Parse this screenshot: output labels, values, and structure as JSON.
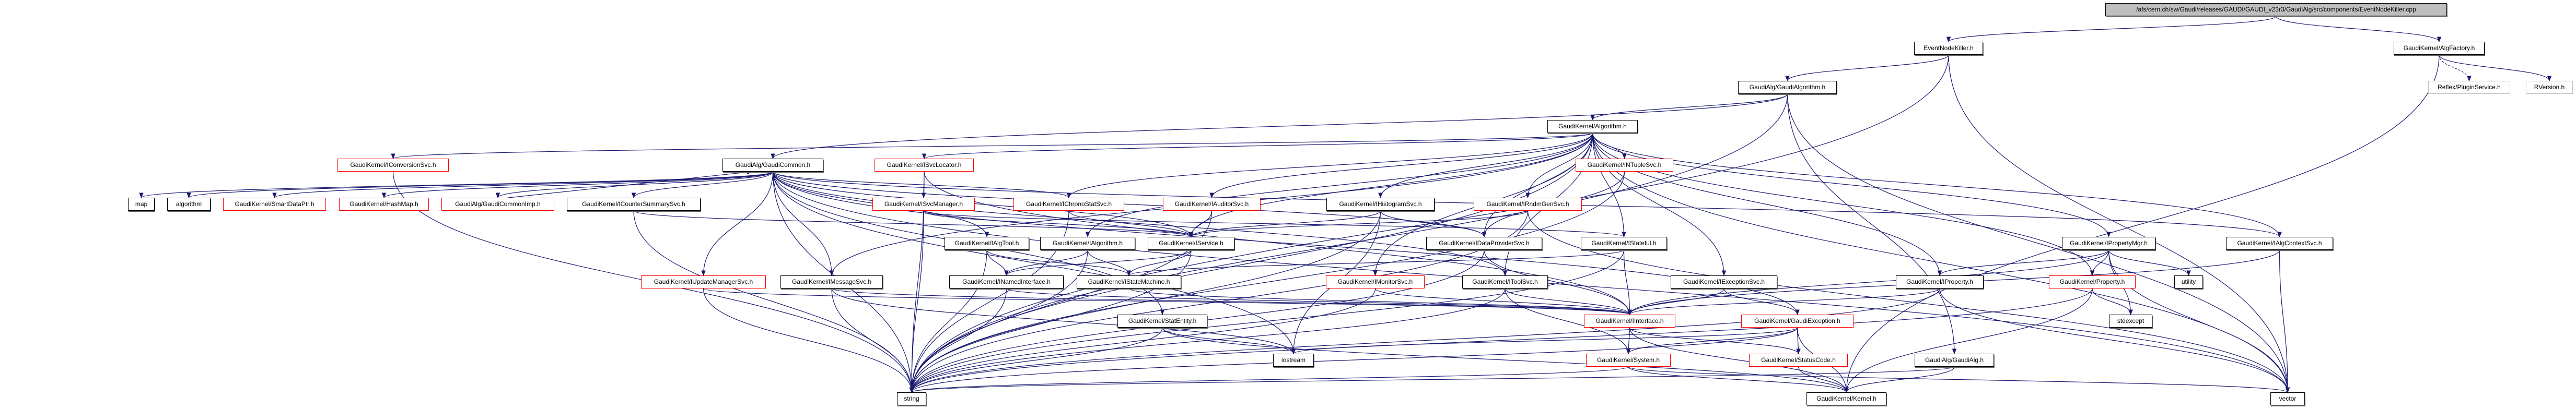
{
  "colors": {
    "edge": "#191970",
    "normal_border": "#000000",
    "link_border": "#ff0000",
    "external_border": "#bfbfbf",
    "root_fill": "#bfbfbf"
  },
  "nodes": [
    {
      "id": "root",
      "label": "/afs/cern.ch/sw/Gaudi/releases/GAUDI/GAUDI_v23r3/GaudiAlg/src/components/EventNodeKiller.cpp",
      "style": "root"
    },
    {
      "id": "enk",
      "label": "EventNodeKiller.h",
      "style": "black"
    },
    {
      "id": "algfac",
      "label": "GaudiKernel/AlgFactory.h",
      "style": "black"
    },
    {
      "id": "plugin",
      "label": "Reflex/PluginService.h",
      "style": "gray"
    },
    {
      "id": "rversion",
      "label": "RVersion.h",
      "style": "gray"
    },
    {
      "id": "gaudialgorithm",
      "label": "GaudiAlg/GaudiAlgorithm.h",
      "style": "black"
    },
    {
      "id": "algorithm",
      "label": "GaudiKernel/Algorithm.h",
      "style": "black"
    },
    {
      "id": "iconv",
      "label": "GaudiKernel/IConversionSvc.h",
      "style": "red"
    },
    {
      "id": "gaudicommon",
      "label": "GaudiAlg/GaudiCommon.h",
      "style": "black"
    },
    {
      "id": "isvcloc",
      "label": "GaudiKernel/ISvcLocator.h",
      "style": "red"
    },
    {
      "id": "intuple",
      "label": "GaudiKernel/INTupleSvc.h",
      "style": "red"
    },
    {
      "id": "map",
      "label": "map",
      "style": "black"
    },
    {
      "id": "algostd",
      "label": "algorithm",
      "style": "black"
    },
    {
      "id": "smartdata",
      "label": "GaudiKernel/SmartDataPtr.h",
      "style": "red"
    },
    {
      "id": "hashmap",
      "label": "GaudiKernel/HashMap.h",
      "style": "red"
    },
    {
      "id": "gcimp",
      "label": "GaudiAlg/GaudiCommonImp.h",
      "style": "red"
    },
    {
      "id": "icounter",
      "label": "GaudiKernel/ICounterSummarySvc.h",
      "style": "black"
    },
    {
      "id": "isvcmgr",
      "label": "GaudiKernel/ISvcManager.h",
      "style": "red"
    },
    {
      "id": "ichrono",
      "label": "GaudiKernel/IChronoStatSvc.h",
      "style": "red"
    },
    {
      "id": "iauditor",
      "label": "GaudiKernel/IAuditorSvc.h",
      "style": "red"
    },
    {
      "id": "ihisto",
      "label": "GaudiKernel/IHistogramSvc.h",
      "style": "black"
    },
    {
      "id": "irndm",
      "label": "GaudiKernel/IRndmGenSvc.h",
      "style": "red"
    },
    {
      "id": "ialgtool",
      "label": "GaudiKernel/IAlgTool.h",
      "style": "black"
    },
    {
      "id": "ialgorithm",
      "label": "GaudiKernel/IAlgorithm.h",
      "style": "black"
    },
    {
      "id": "iservice",
      "label": "GaudiKernel/IService.h",
      "style": "black"
    },
    {
      "id": "idataprov",
      "label": "GaudiKernel/IDataProviderSvc.h",
      "style": "black"
    },
    {
      "id": "istateful",
      "label": "GaudiKernel/IStateful.h",
      "style": "black"
    },
    {
      "id": "ipropmgr",
      "label": "GaudiKernel/IPropertyMgr.h",
      "style": "black"
    },
    {
      "id": "ialgctx",
      "label": "GaudiKernel/IAlgContextSvc.h",
      "style": "black"
    },
    {
      "id": "iupdmgr",
      "label": "GaudiKernel/IUpdateManagerSvc.h",
      "style": "red"
    },
    {
      "id": "imsg",
      "label": "GaudiKernel/IMessageSvc.h",
      "style": "black"
    },
    {
      "id": "inamed",
      "label": "GaudiKernel/INamedInterface.h",
      "style": "black"
    },
    {
      "id": "istatemach",
      "label": "GaudiKernel/IStateMachine.h",
      "style": "black"
    },
    {
      "id": "imonitor",
      "label": "GaudiKernel/IMonitorSvc.h",
      "style": "red"
    },
    {
      "id": "itoolsvc",
      "label": "GaudiKernel/IToolSvc.h",
      "style": "black"
    },
    {
      "id": "iexcept",
      "label": "GaudiKernel/IExceptionSvc.h",
      "style": "black"
    },
    {
      "id": "iproperty",
      "label": "GaudiKernel/IProperty.h",
      "style": "black"
    },
    {
      "id": "property",
      "label": "GaudiKernel/Property.h",
      "style": "red"
    },
    {
      "id": "utility",
      "label": "utility",
      "style": "black"
    },
    {
      "id": "statentity",
      "label": "GaudiKernel/StatEntity.h",
      "style": "black"
    },
    {
      "id": "iinterface",
      "label": "GaudiKernel/IInterface.h",
      "style": "red"
    },
    {
      "id": "gexception",
      "label": "GaudiKernel/GaudiException.h",
      "style": "red"
    },
    {
      "id": "stdexcept",
      "label": "stdexcept",
      "style": "black"
    },
    {
      "id": "iostream",
      "label": "iostream",
      "style": "black"
    },
    {
      "id": "system",
      "label": "GaudiKernel/System.h",
      "style": "red"
    },
    {
      "id": "statuscode",
      "label": "GaudiKernel/StatusCode.h",
      "style": "red"
    },
    {
      "id": "gaudialg",
      "label": "GaudiAlg/GaudiAlg.h",
      "style": "black"
    },
    {
      "id": "string",
      "label": "string",
      "style": "black"
    },
    {
      "id": "kernel",
      "label": "GaudiKernel/Kernel.h",
      "style": "black"
    },
    {
      "id": "vector",
      "label": "vector",
      "style": "black"
    }
  ],
  "edges": [
    [
      "root",
      "enk"
    ],
    [
      "root",
      "algfac"
    ],
    [
      "algfac",
      "plugin"
    ],
    [
      "algfac",
      "rversion"
    ],
    [
      "algfac",
      "kernel"
    ],
    [
      "enk",
      "gaudialgorithm"
    ],
    [
      "enk",
      "string"
    ],
    [
      "enk",
      "vector"
    ],
    [
      "gaudialgorithm",
      "algorithm"
    ],
    [
      "gaudialgorithm",
      "gaudicommon"
    ],
    [
      "gaudialgorithm",
      "gaudialg"
    ],
    [
      "gaudialgorithm",
      "string"
    ],
    [
      "gaudialgorithm",
      "vector"
    ],
    [
      "algorithm",
      "iconv"
    ],
    [
      "algorithm",
      "isvcloc"
    ],
    [
      "algorithm",
      "intuple"
    ],
    [
      "algorithm",
      "ialgorithm"
    ],
    [
      "algorithm",
      "iservice"
    ],
    [
      "algorithm",
      "iproperty"
    ],
    [
      "algorithm",
      "ipropmgr"
    ],
    [
      "algorithm",
      "ichrono"
    ],
    [
      "algorithm",
      "iauditor"
    ],
    [
      "algorithm",
      "ihisto"
    ],
    [
      "algorithm",
      "irndm"
    ],
    [
      "algorithm",
      "idataprov"
    ],
    [
      "algorithm",
      "istateful"
    ],
    [
      "algorithm",
      "imsg"
    ],
    [
      "algorithm",
      "imonitor"
    ],
    [
      "algorithm",
      "itoolsvc"
    ],
    [
      "algorithm",
      "iexcept"
    ],
    [
      "algorithm",
      "ialgctx"
    ],
    [
      "algorithm",
      "property"
    ],
    [
      "algorithm",
      "string"
    ],
    [
      "algorithm",
      "vector"
    ],
    [
      "gaudicommon",
      "map"
    ],
    [
      "gaudicommon",
      "algostd"
    ],
    [
      "gaudicommon",
      "smartdata"
    ],
    [
      "gaudicommon",
      "hashmap"
    ],
    [
      "gaudicommon",
      "gcimp"
    ],
    [
      "gaudicommon",
      "icounter"
    ],
    [
      "gaudicommon",
      "ichrono"
    ],
    [
      "gaudicommon",
      "ialgtool"
    ],
    [
      "gaudicommon",
      "iservice"
    ],
    [
      "gaudicommon",
      "iupdmgr"
    ],
    [
      "gaudicommon",
      "imsg"
    ],
    [
      "gaudicommon",
      "statentity"
    ],
    [
      "gaudicommon",
      "itoolsvc"
    ],
    [
      "gaudicommon",
      "ialgctx"
    ],
    [
      "gaudicommon",
      "idataprov"
    ],
    [
      "gaudicommon",
      "gexception"
    ],
    [
      "gaudicommon",
      "iostream"
    ],
    [
      "gaudicommon",
      "string"
    ],
    [
      "gaudicommon",
      "vector"
    ],
    [
      "gcimp",
      "gaudicommon"
    ],
    [
      "iconv",
      "string"
    ],
    [
      "icounter",
      "iservice"
    ],
    [
      "icounter",
      "string"
    ],
    [
      "isvcloc",
      "isvcmgr"
    ],
    [
      "isvcloc",
      "iinterface"
    ],
    [
      "isvcloc",
      "string"
    ],
    [
      "isvcmgr",
      "iservice"
    ],
    [
      "isvcmgr",
      "istateful"
    ],
    [
      "isvcmgr",
      "string"
    ],
    [
      "ichrono",
      "iservice"
    ],
    [
      "ichrono",
      "string"
    ],
    [
      "iauditor",
      "iservice"
    ],
    [
      "iauditor",
      "string"
    ],
    [
      "ihisto",
      "iservice"
    ],
    [
      "ihisto",
      "idataprov"
    ],
    [
      "ihisto",
      "iostream"
    ],
    [
      "ihisto",
      "string"
    ],
    [
      "irndm",
      "iservice"
    ],
    [
      "irndm",
      "string"
    ],
    [
      "irndm",
      "vector"
    ],
    [
      "intuple",
      "idataprov"
    ],
    [
      "intuple",
      "string"
    ],
    [
      "ialgtool",
      "inamed"
    ],
    [
      "ialgtool",
      "istatemach"
    ],
    [
      "ialgtool",
      "string"
    ],
    [
      "ialgorithm",
      "inamed"
    ],
    [
      "ialgorithm",
      "istatemach"
    ],
    [
      "ialgorithm",
      "string"
    ],
    [
      "iservice",
      "inamed"
    ],
    [
      "iservice",
      "istatemach"
    ],
    [
      "iservice",
      "string"
    ],
    [
      "idataprov",
      "iinterface"
    ],
    [
      "idataprov",
      "string"
    ],
    [
      "istateful",
      "istatemach"
    ],
    [
      "istateful",
      "iinterface"
    ],
    [
      "istateful",
      "string"
    ],
    [
      "ipropmgr",
      "iproperty"
    ],
    [
      "ipropmgr",
      "property"
    ],
    [
      "ipropmgr",
      "iinterface"
    ],
    [
      "ipropmgr",
      "utility"
    ],
    [
      "ipropmgr",
      "stdexcept"
    ],
    [
      "ipropmgr",
      "vector"
    ],
    [
      "ialgctx",
      "iinterface"
    ],
    [
      "ialgctx",
      "vector"
    ],
    [
      "iupdmgr",
      "iinterface"
    ],
    [
      "iupdmgr",
      "string"
    ],
    [
      "imsg",
      "iinterface"
    ],
    [
      "imsg",
      "iostream"
    ],
    [
      "imsg",
      "string"
    ],
    [
      "inamed",
      "iinterface"
    ],
    [
      "inamed",
      "string"
    ],
    [
      "istatemach",
      "iinterface"
    ],
    [
      "imonitor",
      "iinterface"
    ],
    [
      "imonitor",
      "string"
    ],
    [
      "itoolsvc",
      "iinterface"
    ],
    [
      "itoolsvc",
      "system"
    ],
    [
      "itoolsvc",
      "string"
    ],
    [
      "iexcept",
      "iinterface"
    ],
    [
      "iexcept",
      "gexception"
    ],
    [
      "iproperty",
      "iinterface"
    ],
    [
      "iproperty",
      "string"
    ],
    [
      "iproperty",
      "vector"
    ],
    [
      "property",
      "stdexcept"
    ],
    [
      "property",
      "kernel"
    ],
    [
      "property",
      "string"
    ],
    [
      "statentity",
      "iostream"
    ],
    [
      "statentity",
      "kernel"
    ],
    [
      "statentity",
      "string"
    ],
    [
      "iinterface",
      "system"
    ],
    [
      "iinterface",
      "statuscode"
    ],
    [
      "iinterface",
      "kernel"
    ],
    [
      "gexception",
      "system"
    ],
    [
      "gexception",
      "statuscode"
    ],
    [
      "gexception",
      "kernel"
    ],
    [
      "gexception",
      "iostream"
    ],
    [
      "gexception",
      "string"
    ],
    [
      "system",
      "kernel"
    ],
    [
      "system",
      "string"
    ],
    [
      "system",
      "vector"
    ],
    [
      "statuscode",
      "kernel"
    ],
    [
      "gaudialg",
      "kernel"
    ],
    [
      "gaudialg",
      "string"
    ]
  ]
}
